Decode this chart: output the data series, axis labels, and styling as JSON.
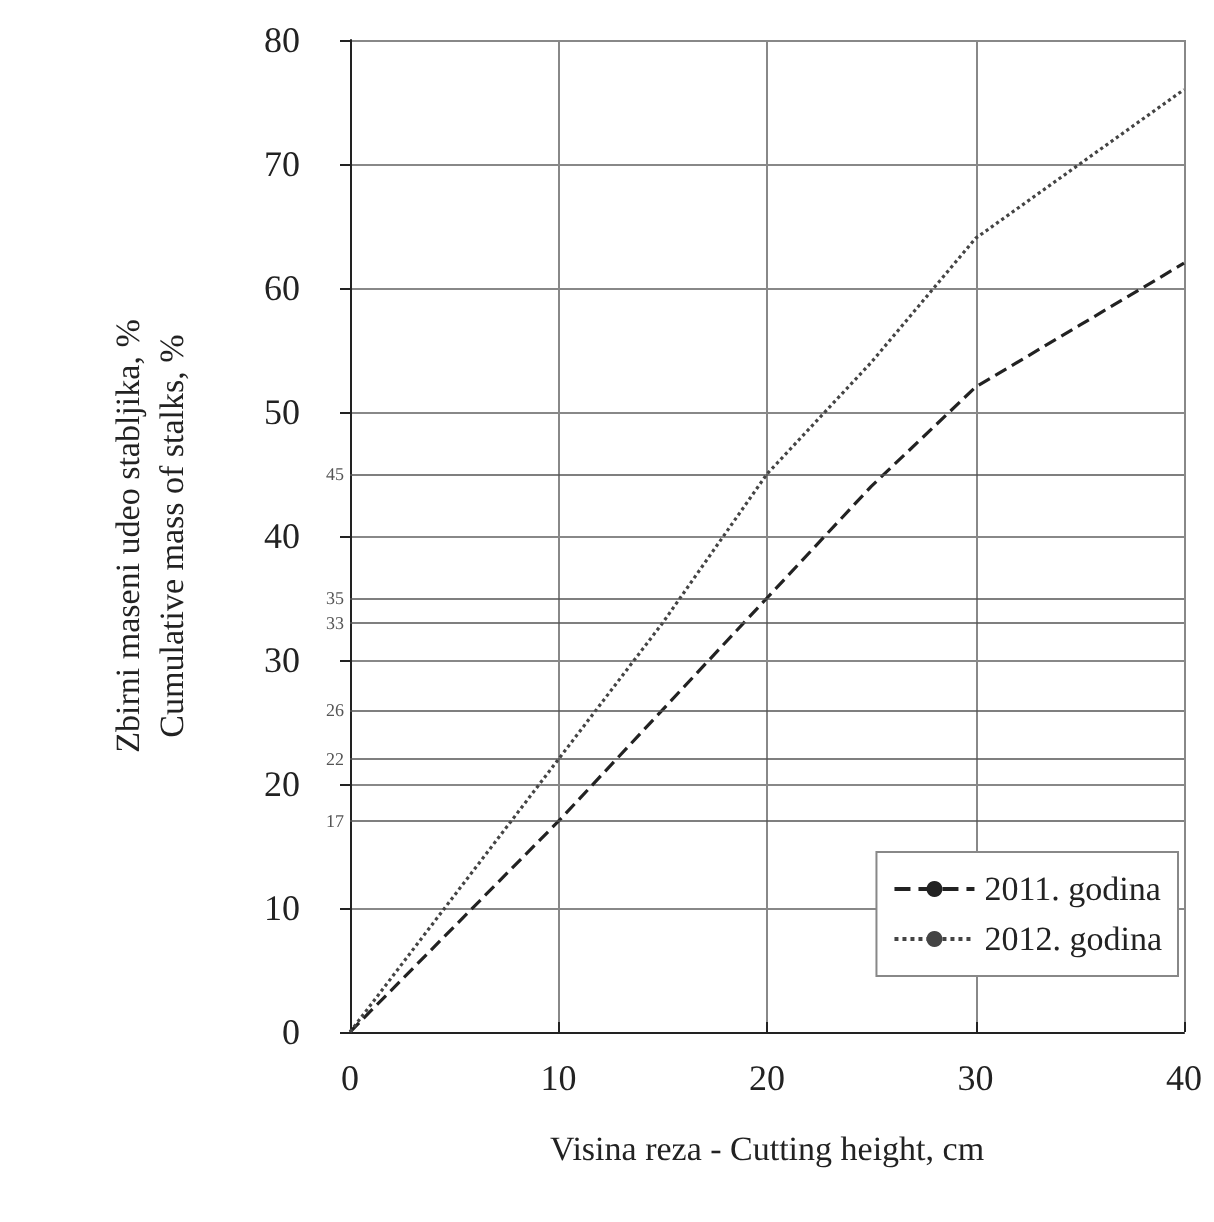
{
  "chart_data": {
    "type": "line",
    "xlabel": "Visina reza - Cutting height, cm",
    "ylabel": "Zbirni maseni udeo stabljika, %\nCumulative mass of stalks, %",
    "x": [
      0,
      10,
      15,
      20,
      25,
      30,
      35,
      40
    ],
    "series": [
      {
        "name": "2011. godina",
        "color": "#222222",
        "line_style": "dashed",
        "values": [
          0,
          17,
          26,
          35,
          44,
          52,
          57,
          62
        ]
      },
      {
        "name": "2012. godina",
        "color": "#444444",
        "line_style": "dotted",
        "values": [
          0,
          22,
          33,
          45,
          54,
          64,
          70,
          76
        ]
      }
    ],
    "xlim": [
      0,
      40
    ],
    "xticks": [
      0,
      10,
      20,
      30,
      40
    ],
    "ylim": [
      0,
      80
    ],
    "yticks": [
      0,
      10,
      20,
      30,
      40,
      50,
      60,
      70,
      80
    ],
    "ref_lines": [
      {
        "axis": "y",
        "value": 17,
        "label": "17",
        "color": "#555555"
      },
      {
        "axis": "y",
        "value": 22,
        "label": "22",
        "color": "#555555"
      },
      {
        "axis": "y",
        "value": 26,
        "label": "26",
        "color": "#555555"
      },
      {
        "axis": "y",
        "value": 33,
        "label": "33",
        "color": "#555555"
      },
      {
        "axis": "y",
        "value": 35,
        "label": "35",
        "color": "#555555"
      },
      {
        "axis": "y",
        "value": 45,
        "label": "45",
        "color": "#555555"
      }
    ],
    "grid": true,
    "legend": "bottom right",
    "marker": "none"
  }
}
